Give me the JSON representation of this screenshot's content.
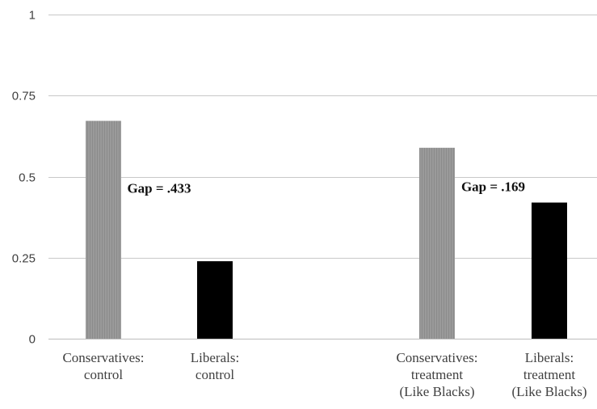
{
  "chart_data": {
    "type": "bar",
    "categories": [
      [
        "Conservatives:",
        "control"
      ],
      [
        "Liberals:",
        "control"
      ],
      [
        "Conservatives:",
        "treatment",
        "(Like Blacks)"
      ],
      [
        "Liberals:",
        "treatment",
        "(Like Blacks)"
      ]
    ],
    "values": [
      0.672,
      0.239,
      0.589,
      0.42
    ],
    "bar_colors": [
      "#999999",
      "#000000",
      "#999999",
      "#000000"
    ],
    "group_sizes": [
      2,
      2
    ],
    "yticks": [
      "0",
      "0.25",
      "0.5",
      "0.75",
      "1"
    ],
    "ytick_values": [
      0,
      0.25,
      0.5,
      0.75,
      1
    ],
    "ylim": [
      0,
      1
    ],
    "grid": true,
    "annotations": [
      {
        "text": "Gap = .433",
        "group": 0,
        "y": 0.45
      },
      {
        "text": "Gap = .169",
        "group": 1,
        "y": 0.455
      }
    ]
  }
}
